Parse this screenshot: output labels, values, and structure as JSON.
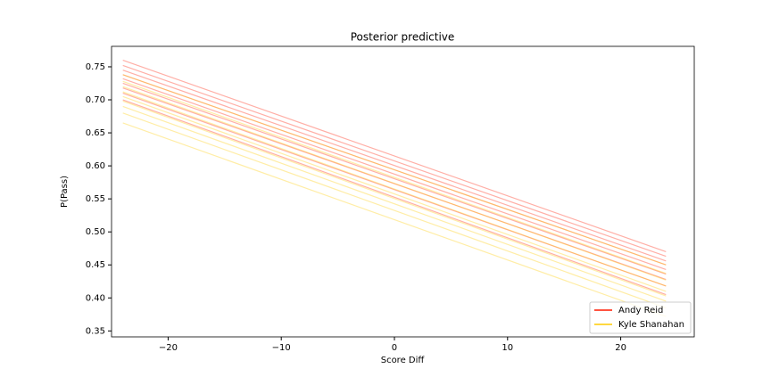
{
  "chart_data": {
    "type": "line",
    "title": "Posterior predictive",
    "xlabel": "Score Diff",
    "ylabel": "P(Pass)",
    "x": [
      -24,
      24
    ],
    "xlim": [
      -25,
      26.5
    ],
    "ylim": [
      0.341,
      0.781
    ],
    "xticks": [
      {
        "value": -20,
        "label": "−20"
      },
      {
        "value": -10,
        "label": "−10"
      },
      0,
      10,
      20
    ],
    "yticks": [
      0.35,
      {
        "value": 0.4,
        "label": "0.40"
      },
      0.45,
      {
        "value": 0.5,
        "label": "0.50"
      },
      0.55,
      {
        "value": 0.6,
        "label": "0.60"
      },
      0.65,
      {
        "value": 0.7,
        "label": "0.70"
      },
      0.75
    ],
    "alpha": 0.35,
    "legend": "lower right",
    "series": [
      {
        "name": "Andy Reid",
        "color": "#ff1a00",
        "lines": [
          [
            0.7,
            0.405
          ],
          [
            0.71,
            0.418
          ],
          [
            0.718,
            0.428
          ],
          [
            0.725,
            0.436
          ],
          [
            0.732,
            0.443
          ],
          [
            0.738,
            0.45
          ],
          [
            0.745,
            0.456
          ],
          [
            0.752,
            0.463
          ],
          [
            0.76,
            0.47
          ]
        ]
      },
      {
        "name": "Kyle Shanahan",
        "color": "#ffcc00",
        "lines": [
          [
            0.665,
            0.372
          ],
          [
            0.68,
            0.385
          ],
          [
            0.69,
            0.395
          ],
          [
            0.698,
            0.403
          ],
          [
            0.705,
            0.41
          ],
          [
            0.712,
            0.418
          ],
          [
            0.72,
            0.427
          ],
          [
            0.728,
            0.437
          ],
          [
            0.738,
            0.45
          ]
        ]
      }
    ]
  }
}
